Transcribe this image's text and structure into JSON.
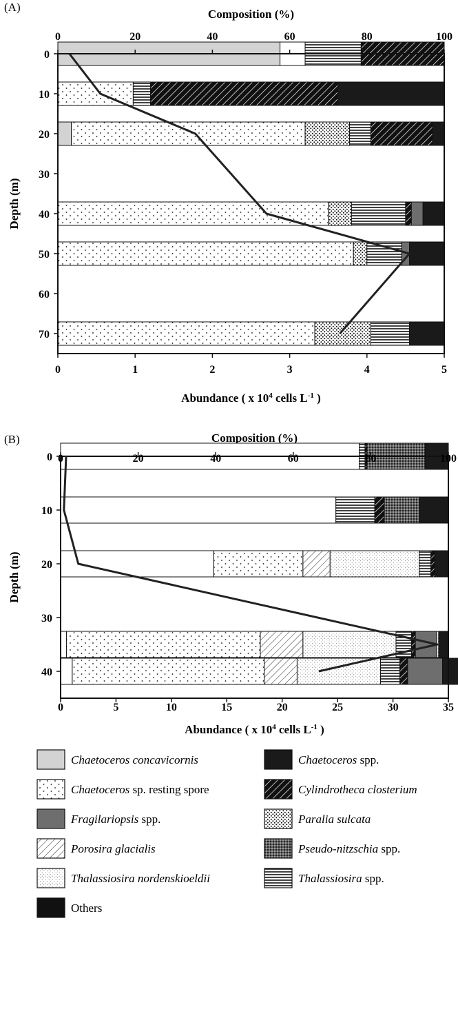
{
  "palette": {
    "Chaetoceros concavicornis": "#d3d3d3",
    "Chaetoceros spp.": "#1a1a1a",
    "Chaetoceros sp. resting spore": "dots-sparse",
    "Cylindrotheca closterium": "hatch-diagonal-dark",
    "Fragilariopsis spp.": "#6e6e6e",
    "Paralia sulcata": "dots-dense",
    "Porosira glacialis": "hatch-diagonal-light",
    "Pseudo-nitzschia spp.": "crosshatch-dense",
    "Thalassiosira nordenskioeldii": "dots-fine",
    "Thalassiosira spp.": "horizontal-lines",
    "Others": "#111111",
    "unidentified": "#ffffff"
  },
  "chart_data": [
    {
      "panel": "(A)",
      "type": "bar",
      "orientation": "horizontal-stacked",
      "title": "Composition (%)",
      "xlabel": "Abundance ( x 10^4 cells L^-1 )",
      "ylabel": "Depth (m)",
      "composition_ticks": [
        "0",
        "20",
        "40",
        "60",
        "80",
        "100"
      ],
      "abundance_ticks": [
        "0",
        "1",
        "2",
        "3",
        "4",
        "5"
      ],
      "depth_ticks": [
        "0",
        "10",
        "20",
        "30",
        "40",
        "50",
        "60",
        "70"
      ],
      "depth_range": [
        0,
        75
      ],
      "abundance_range": [
        0,
        5
      ],
      "composition_range": [
        0,
        100
      ],
      "bars": [
        {
          "depth": 0,
          "segments": [
            {
              "taxon": "Chaetoceros concavicornis",
              "percent": 57.5
            },
            {
              "taxon": "unidentified",
              "percent": 6.5
            },
            {
              "taxon": "Thalassiosira spp.",
              "percent": 14.5
            },
            {
              "taxon": "Cylindrotheca closterium",
              "percent": 21.5
            }
          ]
        },
        {
          "depth": 10,
          "segments": [
            {
              "taxon": "Chaetoceros sp. resting spore",
              "percent": 19.5
            },
            {
              "taxon": "Thalassiosira spp.",
              "percent": 4.5
            },
            {
              "taxon": "Cylindrotheca closterium",
              "percent": 48.5
            },
            {
              "taxon": "Chaetoceros spp.",
              "percent": 27.5
            }
          ]
        },
        {
          "depth": 20,
          "segments": [
            {
              "taxon": "Chaetoceros concavicornis",
              "percent": 3.5
            },
            {
              "taxon": "Chaetoceros sp. resting spore",
              "percent": 60.5
            },
            {
              "taxon": "Paralia sulcata",
              "percent": 11.5
            },
            {
              "taxon": "Thalassiosira spp.",
              "percent": 5.5
            },
            {
              "taxon": "Cylindrotheca closterium",
              "percent": 16.0
            },
            {
              "taxon": "Chaetoceros spp.",
              "percent": 3.0
            }
          ]
        },
        {
          "depth": 40,
          "segments": [
            {
              "taxon": "Chaetoceros sp. resting spore",
              "percent": 70.0
            },
            {
              "taxon": "Paralia sulcata",
              "percent": 6.0
            },
            {
              "taxon": "Thalassiosira spp.",
              "percent": 14.0
            },
            {
              "taxon": "Cylindrotheca closterium",
              "percent": 1.5
            },
            {
              "taxon": "Fragilariopsis spp.",
              "percent": 3.0
            },
            {
              "taxon": "Chaetoceros spp.",
              "percent": 5.5
            }
          ]
        },
        {
          "depth": 50,
          "segments": [
            {
              "taxon": "Chaetoceros sp. resting spore",
              "percent": 76.5
            },
            {
              "taxon": "Paralia sulcata",
              "percent": 3.5
            },
            {
              "taxon": "Thalassiosira spp.",
              "percent": 9.0
            },
            {
              "taxon": "Fragilariopsis spp.",
              "percent": 2.0
            },
            {
              "taxon": "Chaetoceros spp.",
              "percent": 9.0
            }
          ]
        },
        {
          "depth": 70,
          "segments": [
            {
              "taxon": "Chaetoceros sp. resting spore",
              "percent": 66.5
            },
            {
              "taxon": "Paralia sulcata",
              "percent": 14.5
            },
            {
              "taxon": "Thalassiosira spp.",
              "percent": 10.0
            },
            {
              "taxon": "Chaetoceros spp.",
              "percent": 9.0
            }
          ]
        }
      ],
      "abundance_line": [
        {
          "depth": 0,
          "abundance": 0.15
        },
        {
          "depth": 10,
          "abundance": 0.55
        },
        {
          "depth": 20,
          "abundance": 1.78
        },
        {
          "depth": 40,
          "abundance": 2.7
        },
        {
          "depth": 50,
          "abundance": 4.55
        },
        {
          "depth": 70,
          "abundance": 3.65
        }
      ]
    },
    {
      "panel": "(B)",
      "type": "bar",
      "orientation": "horizontal-stacked",
      "title": "Composition (%)",
      "xlabel": "Abundance ( x 10^4 cells L^-1 )",
      "ylabel": "Depth (m)",
      "composition_ticks": [
        "0",
        "20",
        "40",
        "60",
        "80",
        "100"
      ],
      "abundance_ticks": [
        "0",
        "5",
        "10",
        "15",
        "20",
        "25",
        "30",
        "35"
      ],
      "depth_ticks": [
        "0",
        "10",
        "20",
        "30",
        "40"
      ],
      "depth_range": [
        0,
        45
      ],
      "abundance_range": [
        0,
        35
      ],
      "composition_range": [
        0,
        100
      ],
      "bars": [
        {
          "depth": 0,
          "segments": [
            {
              "taxon": "unidentified",
              "percent": 77.0
            },
            {
              "taxon": "Thalassiosira spp.",
              "percent": 1.5
            },
            {
              "taxon": "Cylindrotheca closterium",
              "percent": 0.5
            },
            {
              "taxon": "Pseudo-nitzschia spp.",
              "percent": 15.0
            },
            {
              "taxon": "Chaetoceros spp.",
              "percent": 6.0
            }
          ]
        },
        {
          "depth": 10,
          "segments": [
            {
              "taxon": "unidentified",
              "percent": 71.0
            },
            {
              "taxon": "Thalassiosira spp.",
              "percent": 10.0
            },
            {
              "taxon": "Cylindrotheca closterium",
              "percent": 2.5
            },
            {
              "taxon": "Pseudo-nitzschia spp.",
              "percent": 9.0
            },
            {
              "taxon": "Chaetoceros spp.",
              "percent": 7.5
            }
          ]
        },
        {
          "depth": 20,
          "segments": [
            {
              "taxon": "unidentified",
              "percent": 39.5
            },
            {
              "taxon": "Chaetoceros sp. resting spore",
              "percent": 23.0
            },
            {
              "taxon": "Porosira glacialis",
              "percent": 7.0
            },
            {
              "taxon": "Thalassiosira nordenskioeldii",
              "percent": 23.0
            },
            {
              "taxon": "Thalassiosira spp.",
              "percent": 3.0
            },
            {
              "taxon": "Cylindrotheca closterium",
              "percent": 1.0
            },
            {
              "taxon": "Chaetoceros spp.",
              "percent": 3.5
            }
          ]
        },
        {
          "depth": 35,
          "segments": [
            {
              "taxon": "unidentified",
              "percent": 1.5
            },
            {
              "taxon": "Chaetoceros sp. resting spore",
              "percent": 50.0
            },
            {
              "taxon": "Porosira glacialis",
              "percent": 11.0
            },
            {
              "taxon": "Thalassiosira nordenskioeldii",
              "percent": 24.0
            },
            {
              "taxon": "Thalassiosira spp.",
              "percent": 4.0
            },
            {
              "taxon": "Cylindrotheca closterium",
              "percent": 1.0
            },
            {
              "taxon": "Fragilariopsis spp.",
              "percent": 5.5
            },
            {
              "taxon": "Thalassiosira nordenskioeldii",
              "percent": 0.5
            },
            {
              "taxon": "Chaetoceros spp.",
              "percent": 2.5
            }
          ]
        },
        {
          "depth": 40,
          "segments": [
            {
              "taxon": "unidentified",
              "percent": 3.0
            },
            {
              "taxon": "Chaetoceros sp. resting spore",
              "percent": 49.5
            },
            {
              "taxon": "Porosira glacialis",
              "percent": 8.5
            },
            {
              "taxon": "Thalassiosira nordenskioeldii",
              "percent": 21.5
            },
            {
              "taxon": "Thalassiosira spp.",
              "percent": 5.0
            },
            {
              "taxon": "Cylindrotheca closterium",
              "percent": 2.0
            },
            {
              "taxon": "Fragilariopsis spp.",
              "percent": 9.0
            },
            {
              "taxon": "Chaetoceros spp.",
              "percent": 6.0
            }
          ]
        }
      ],
      "abundance_line": [
        {
          "depth": 0,
          "abundance": 0.5
        },
        {
          "depth": 10,
          "abundance": 0.3
        },
        {
          "depth": 20,
          "abundance": 1.6
        },
        {
          "depth": 35,
          "abundance": 34.0
        },
        {
          "depth": 40,
          "abundance": 23.3
        }
      ]
    }
  ],
  "legend": [
    {
      "label": "Chaetoceros concavicornis",
      "italic_part": "Chaetoceros concavicornis",
      "plain_part": ""
    },
    {
      "label": "Chaetoceros spp.",
      "italic_part": "Chaetoceros",
      "plain_part": " spp."
    },
    {
      "label": "Chaetoceros sp. resting spore",
      "italic_part": "Chaetoceros",
      "plain_part": " sp. resting spore"
    },
    {
      "label": "Cylindrotheca closterium",
      "italic_part": "Cylindrotheca closterium",
      "plain_part": ""
    },
    {
      "label": "Fragilariopsis spp.",
      "italic_part": "Fragilariopsis",
      "plain_part": " spp."
    },
    {
      "label": "Paralia sulcata",
      "italic_part": "Paralia sulcata",
      "plain_part": ""
    },
    {
      "label": "Porosira glacialis",
      "italic_part": "Porosira glacialis",
      "plain_part": ""
    },
    {
      "label": "Pseudo-nitzschia spp.",
      "italic_part": "Pseudo-nitzschia",
      "plain_part": " spp."
    },
    {
      "label": "Thalassiosira nordenskioeldii",
      "italic_part": "Thalassiosira nordenskioeldii",
      "plain_part": ""
    },
    {
      "label": "Thalassiosira spp.",
      "italic_part": "Thalassiosira",
      "plain_part": " spp."
    },
    {
      "label": "Others",
      "italic_part": "",
      "plain_part": "Others"
    }
  ]
}
